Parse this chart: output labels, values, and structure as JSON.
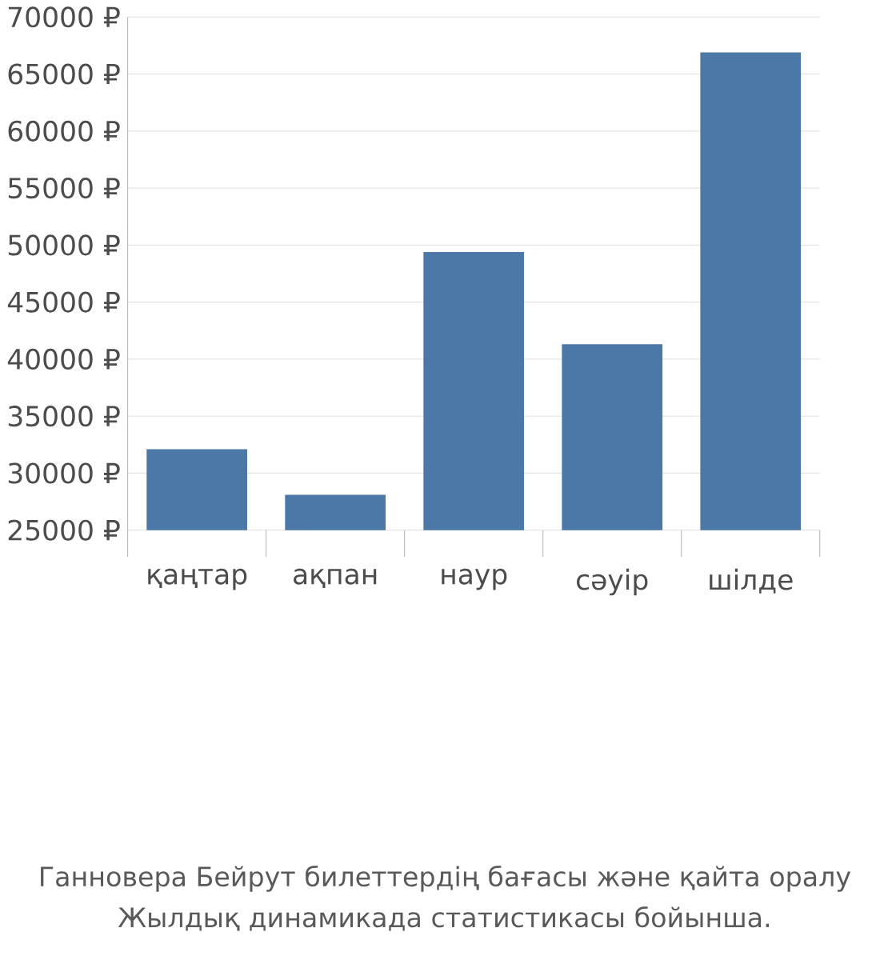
{
  "chart_data": {
    "type": "bar",
    "categories": [
      "қаңтар",
      "ақпан",
      "наур",
      "сәуір",
      "шілде"
    ],
    "values": [
      32100,
      28100,
      49400,
      41300,
      66900
    ],
    "color": "#4c78a8",
    "ylim": [
      25000,
      70000
    ],
    "yticks": [
      {
        "value": 25000,
        "label": "25000 ₽"
      },
      {
        "value": 30000,
        "label": "30000 ₽"
      },
      {
        "value": 35000,
        "label": "35000 ₽"
      },
      {
        "value": 40000,
        "label": "40000 ₽"
      },
      {
        "value": 45000,
        "label": "45000 ₽"
      },
      {
        "value": 50000,
        "label": "50000 ₽"
      },
      {
        "value": 55000,
        "label": "55000 ₽"
      },
      {
        "value": 60000,
        "label": "60000 ₽"
      },
      {
        "value": 65000,
        "label": "65000 ₽"
      },
      {
        "value": 70000,
        "label": "70000 ₽"
      }
    ],
    "grid": "y",
    "annotations": [
      "Ганновера Бейрут билеттердің бағасы және қайта оралу",
      "Жылдық динамикада статистикасы бойынша."
    ]
  }
}
